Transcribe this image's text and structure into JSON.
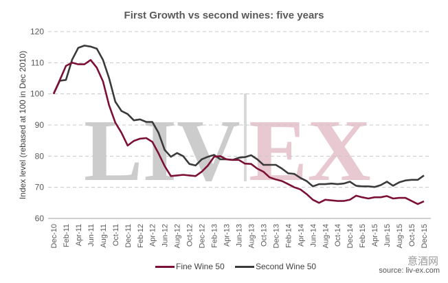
{
  "chart_data": {
    "type": "line",
    "title": "First Growth vs second wines: five years",
    "xlabel": "",
    "ylabel": "Index level (rebased at 100 in Dec 2010)",
    "ylim": [
      60,
      120
    ],
    "yticks": [
      60,
      70,
      80,
      90,
      100,
      110,
      120
    ],
    "grid": true,
    "legend_position": "bottom",
    "x_tick_labels": [
      "Dec-10",
      "Feb-11",
      "Apr-11",
      "Jun-11",
      "Aug-11",
      "Oct-11",
      "Dec-11",
      "Feb-12",
      "Apr-12",
      "Jun-12",
      "Aug-12",
      "Oct-12",
      "Dec-12",
      "Feb-13",
      "Apr-13",
      "Jun-13",
      "Aug-13",
      "Oct-13",
      "Dec-13",
      "Feb-14",
      "Apr-14",
      "Jun-14",
      "Aug-14",
      "Oct-14",
      "Dec-14",
      "Feb-15",
      "Apr-15",
      "Jun-15",
      "Aug-15",
      "Oct-15",
      "Dec-15"
    ],
    "series": [
      {
        "name": "Fine Wine 50",
        "color": "#7b1034",
        "values": [
          100,
          104.4,
          109,
          110,
          109.5,
          109.5,
          110.9,
          108.4,
          104,
          96.3,
          90.8,
          87.5,
          83.4,
          84.9,
          85.6,
          85.8,
          84.6,
          80.9,
          76.8,
          73.6,
          73.8,
          74,
          73.8,
          73.6,
          75,
          77,
          79.8,
          80,
          79,
          78.8,
          78.8,
          77.6,
          77.5,
          76,
          75,
          73.2,
          72.5,
          72,
          71,
          70,
          69.3,
          67.8,
          66,
          65,
          66,
          65.8,
          65.6,
          65.6,
          66,
          67.3,
          66.8,
          66.4,
          66.8,
          66.8,
          67.2,
          66.4,
          66.6,
          66.6,
          65.6,
          64.6,
          65.5
        ]
      },
      {
        "name": "Second Wine 50",
        "color": "#3a3a3a",
        "values": [
          100,
          104.2,
          104.5,
          111,
          114.8,
          115.5,
          115.2,
          114.5,
          110.9,
          105,
          97.5,
          94.5,
          93.5,
          91.5,
          91.8,
          91,
          91,
          87.5,
          82,
          79.8,
          81,
          80,
          77.5,
          77,
          79,
          79.8,
          80.4,
          79,
          79,
          78.8,
          79.5,
          79.7,
          80.3,
          79,
          77.2,
          77.2,
          77.2,
          76,
          74.5,
          74.3,
          73,
          72,
          70.3,
          71,
          71,
          71.2,
          71,
          71.2,
          71.8,
          70.5,
          70.3,
          70.3,
          70.1,
          70.7,
          71.8,
          70.5,
          71.6,
          72.2,
          72.4,
          72.4,
          73.8
        ]
      }
    ]
  },
  "watermark": {
    "left": "LIV",
    "right": "EX",
    "cn": "意酒网"
  },
  "source": "source: liv-ex.com"
}
